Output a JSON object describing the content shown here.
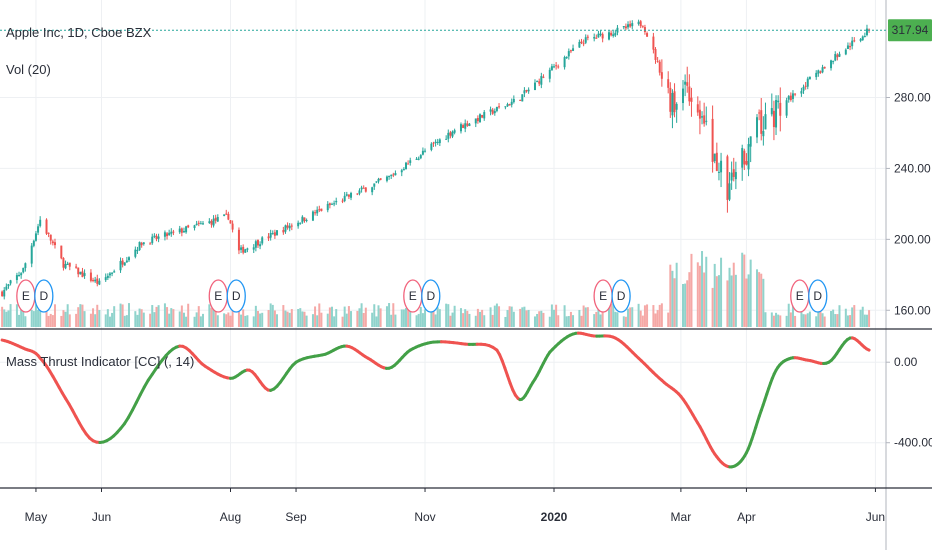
{
  "chart_data": [
    {
      "type": "candlestick",
      "title": "Apple Inc, 1D, Cboe BZX",
      "last_price": "317.94",
      "y_ticks": [
        "280.00",
        "240.00",
        "200.00",
        "160.00"
      ],
      "ylim": [
        150,
        335
      ],
      "x_ticks": [
        "May",
        "Jun",
        "Aug",
        "Sep",
        "Nov",
        "2020",
        "Mar",
        "Apr",
        "Jun"
      ],
      "close_path": [
        [
          "2019-04-15",
          170
        ],
        [
          "2019-04-25",
          183
        ],
        [
          "2019-05-03",
          211
        ],
        [
          "2019-05-14",
          186
        ],
        [
          "2019-05-31",
          175
        ],
        [
          "2019-06-20",
          198
        ],
        [
          "2019-07-31",
          213
        ],
        [
          "2019-08-05",
          193
        ],
        [
          "2019-09-15",
          218
        ],
        [
          "2019-10-15",
          235
        ],
        [
          "2019-11-15",
          262
        ],
        [
          "2019-12-15",
          279
        ],
        [
          "2020-01-15",
          312
        ],
        [
          "2020-02-12",
          322
        ],
        [
          "2020-02-27",
          273
        ],
        [
          "2020-03-03",
          290
        ],
        [
          "2020-03-10",
          270
        ],
        [
          "2020-03-23",
          228
        ],
        [
          "2020-04-06",
          262
        ],
        [
          "2020-04-20",
          278
        ],
        [
          "2020-05-15",
          305
        ],
        [
          "2020-05-29",
          318
        ]
      ]
    },
    {
      "type": "bar",
      "title": "Vol (20)",
      "earnings_markers": [
        {
          "date": "2019-04-30",
          "labels": [
            "E",
            "D"
          ]
        },
        {
          "date": "2019-07-30",
          "labels": [
            "E",
            "D"
          ]
        },
        {
          "date": "2019-10-30",
          "labels": [
            "E",
            "D"
          ]
        },
        {
          "date": "2020-01-28",
          "labels": [
            "E",
            "D"
          ]
        },
        {
          "date": "2020-04-30",
          "labels": [
            "E",
            "D"
          ]
        }
      ]
    },
    {
      "type": "line",
      "title": "Mass Thrust Indicator [CC] (, 14)",
      "y_ticks": [
        "0.00",
        "-400.00"
      ],
      "ylim": [
        -620,
        160
      ],
      "x": [
        "2019-04-15",
        "2019-04-25",
        "2019-05-03",
        "2019-05-15",
        "2019-05-28",
        "2019-06-10",
        "2019-06-25",
        "2019-07-08",
        "2019-07-20",
        "2019-08-01",
        "2019-08-10",
        "2019-08-20",
        "2019-09-01",
        "2019-09-15",
        "2019-09-25",
        "2019-10-05",
        "2019-10-15",
        "2019-10-25",
        "2019-11-05",
        "2019-11-20",
        "2019-12-05",
        "2019-12-15",
        "2019-12-22",
        "2019-12-30",
        "2020-01-10",
        "2020-01-20",
        "2020-01-30",
        "2020-02-10",
        "2020-02-21",
        "2020-03-01",
        "2020-03-10",
        "2020-03-18",
        "2020-03-25",
        "2020-04-01",
        "2020-04-08",
        "2020-04-15",
        "2020-04-22",
        "2020-04-30",
        "2020-05-10",
        "2020-05-20",
        "2020-05-29"
      ],
      "values": [
        110,
        70,
        20,
        -180,
        -390,
        -330,
        -60,
        80,
        -20,
        -80,
        -40,
        -140,
        0,
        40,
        80,
        20,
        -30,
        60,
        100,
        90,
        60,
        -180,
        -100,
        50,
        140,
        130,
        120,
        20,
        -90,
        -170,
        -320,
        -470,
        -520,
        -450,
        -240,
        -40,
        20,
        10,
        0,
        120,
        60
      ],
      "positive_color": "#43a047",
      "negative_color": "#ef5350"
    }
  ]
}
